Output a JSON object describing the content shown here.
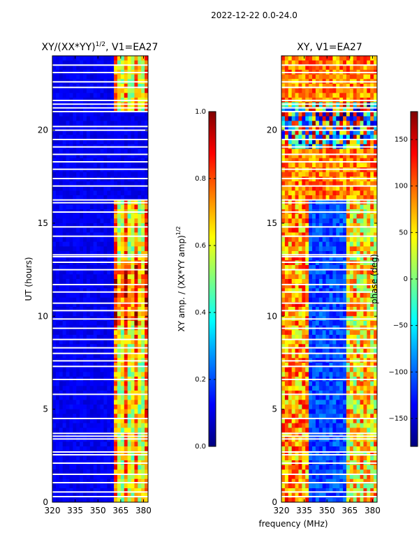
{
  "figure_title": "2022-12-22 0.0-24.0",
  "xlabel_shared": "frequency (MHz)",
  "colors": {
    "jet": [
      "#00007f",
      "#0000ff",
      "#007fff",
      "#00ffff",
      "#7fff7f",
      "#ffff00",
      "#ff7f00",
      "#ff0000",
      "#7f0000"
    ],
    "gap": "#ffffff"
  },
  "chart_data": [
    {
      "type": "heatmap",
      "title": "XY/(XX*YY)",
      "title_sup": "1/2",
      "title_suffix": ", V1=EA27",
      "xlabel": "",
      "ylabel": "UT (hours)",
      "xlim": [
        320,
        383
      ],
      "ylim": [
        0,
        24
      ],
      "xticks": [
        320,
        335,
        350,
        365,
        380
      ],
      "yticks": [
        0,
        5,
        10,
        15,
        20
      ],
      "colorbar": {
        "label": "XY amp. / (XX*YY amp)",
        "label_sup": "1/2",
        "range": [
          0,
          1
        ],
        "ticks": [
          "0.0",
          "0.2",
          "0.4",
          "0.6",
          "0.8",
          "1.0"
        ]
      },
      "description_bands_mhz": {
        "active_band": [
          360,
          382
        ],
        "active_value_range": [
          0.3,
          0.7
        ],
        "background_value": 0.05
      }
    },
    {
      "type": "heatmap",
      "title": "XY, V1=EA27",
      "xlabel": "",
      "ylabel": "",
      "xlim": [
        320,
        383
      ],
      "ylim": [
        0,
        24
      ],
      "xticks": [
        320,
        335,
        350,
        365,
        380
      ],
      "yticks": [
        0,
        5,
        10,
        15,
        20
      ],
      "colorbar": {
        "label": "phase (deg)",
        "range": [
          -180,
          180
        ],
        "ticks": [
          "−150",
          "−100",
          "−50",
          "0",
          "50",
          "100",
          "150"
        ]
      },
      "noisy_phase_hours": [
        16.2,
        24
      ]
    }
  ],
  "gap_hours": [
    0.3,
    0.55,
    1.05,
    1.5,
    2.1,
    2.55,
    2.7,
    3.4,
    3.55,
    3.7,
    4.5,
    5.8,
    6.6,
    7.3,
    7.6,
    8.0,
    8.3,
    8.75,
    9.35,
    9.85,
    10.3,
    10.7,
    11.3,
    11.7,
    12.5,
    12.9,
    13.2,
    13.3,
    14.3,
    14.8,
    15.6,
    16.1,
    16.25,
    17.0,
    17.4,
    17.9,
    18.3,
    18.7,
    19.1,
    19.5,
    20.0,
    20.2,
    21.0,
    21.2,
    21.4,
    21.6,
    22.3,
    22.6,
    23.1,
    23.5
  ]
}
